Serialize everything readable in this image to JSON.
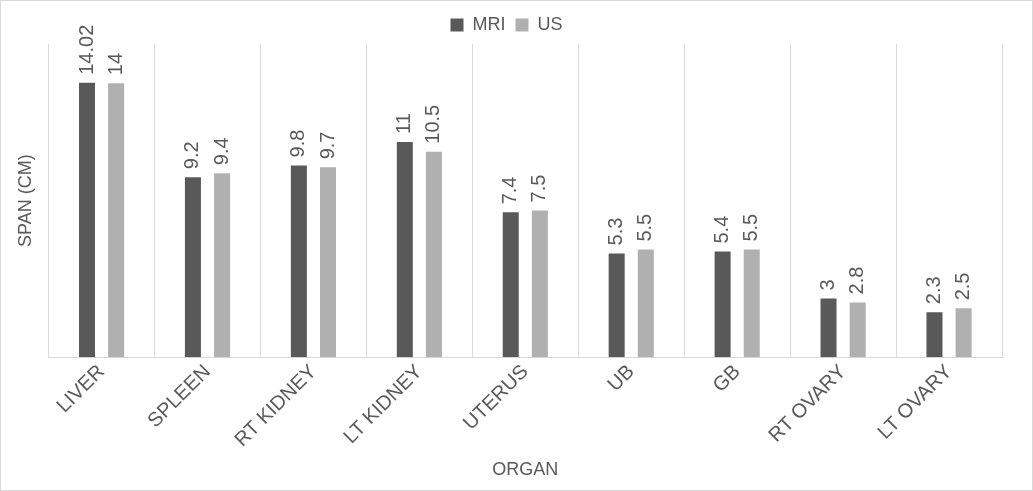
{
  "chart_data": {
    "type": "bar",
    "xlabel": "ORGAN",
    "ylabel": "SPAN (CM)",
    "categories": [
      "LIVER",
      "SPLEEN",
      "RT KIDNEY",
      "LT KIDNEY",
      "UTERUS",
      "UB",
      "GB",
      "RT OVARY",
      "LT OVARY"
    ],
    "series": [
      {
        "name": "MRI",
        "color": "#595959",
        "values": [
          14.02,
          9.2,
          9.8,
          11,
          7.4,
          5.3,
          5.4,
          3,
          2.3
        ]
      },
      {
        "name": "US",
        "color": "#b0b0b0",
        "values": [
          14,
          9.4,
          9.7,
          10.5,
          7.5,
          5.5,
          5.5,
          2.8,
          2.5
        ]
      }
    ],
    "data_labels": true,
    "grid": "x",
    "legend": "top"
  }
}
